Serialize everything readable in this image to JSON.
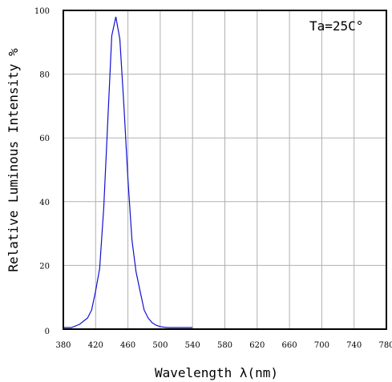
{
  "chart_data": {
    "type": "line",
    "xlabel": "Wavelength λ(nm)",
    "ylabel": "Relative Luminous Intensity %",
    "annotation": "Ta=25C°",
    "xlim": [
      380,
      780
    ],
    "ylim": [
      0,
      100
    ],
    "grid": true,
    "x_ticks": [
      380,
      420,
      460,
      500,
      540,
      580,
      620,
      660,
      700,
      740,
      780
    ],
    "y_ticks": [
      0,
      20,
      40,
      60,
      80,
      100
    ],
    "series": [
      {
        "color": "#1010d0",
        "x": [
          380,
          390,
          400,
          410,
          415,
          420,
          425,
          430,
          435,
          440,
          445,
          450,
          455,
          460,
          465,
          470,
          475,
          480,
          485,
          490,
          495,
          500,
          505,
          510,
          515,
          520,
          525,
          530,
          535,
          540
        ],
        "y": [
          0.5,
          0.5,
          1.5,
          3.5,
          6,
          12,
          19,
          38,
          65,
          92,
          98,
          91,
          70,
          47,
          28,
          18,
          12,
          6,
          3.5,
          2,
          1.2,
          0.8,
          0.6,
          0.5,
          0.5,
          0.5,
          0.5,
          0.5,
          0.5,
          0.5
        ]
      }
    ]
  }
}
